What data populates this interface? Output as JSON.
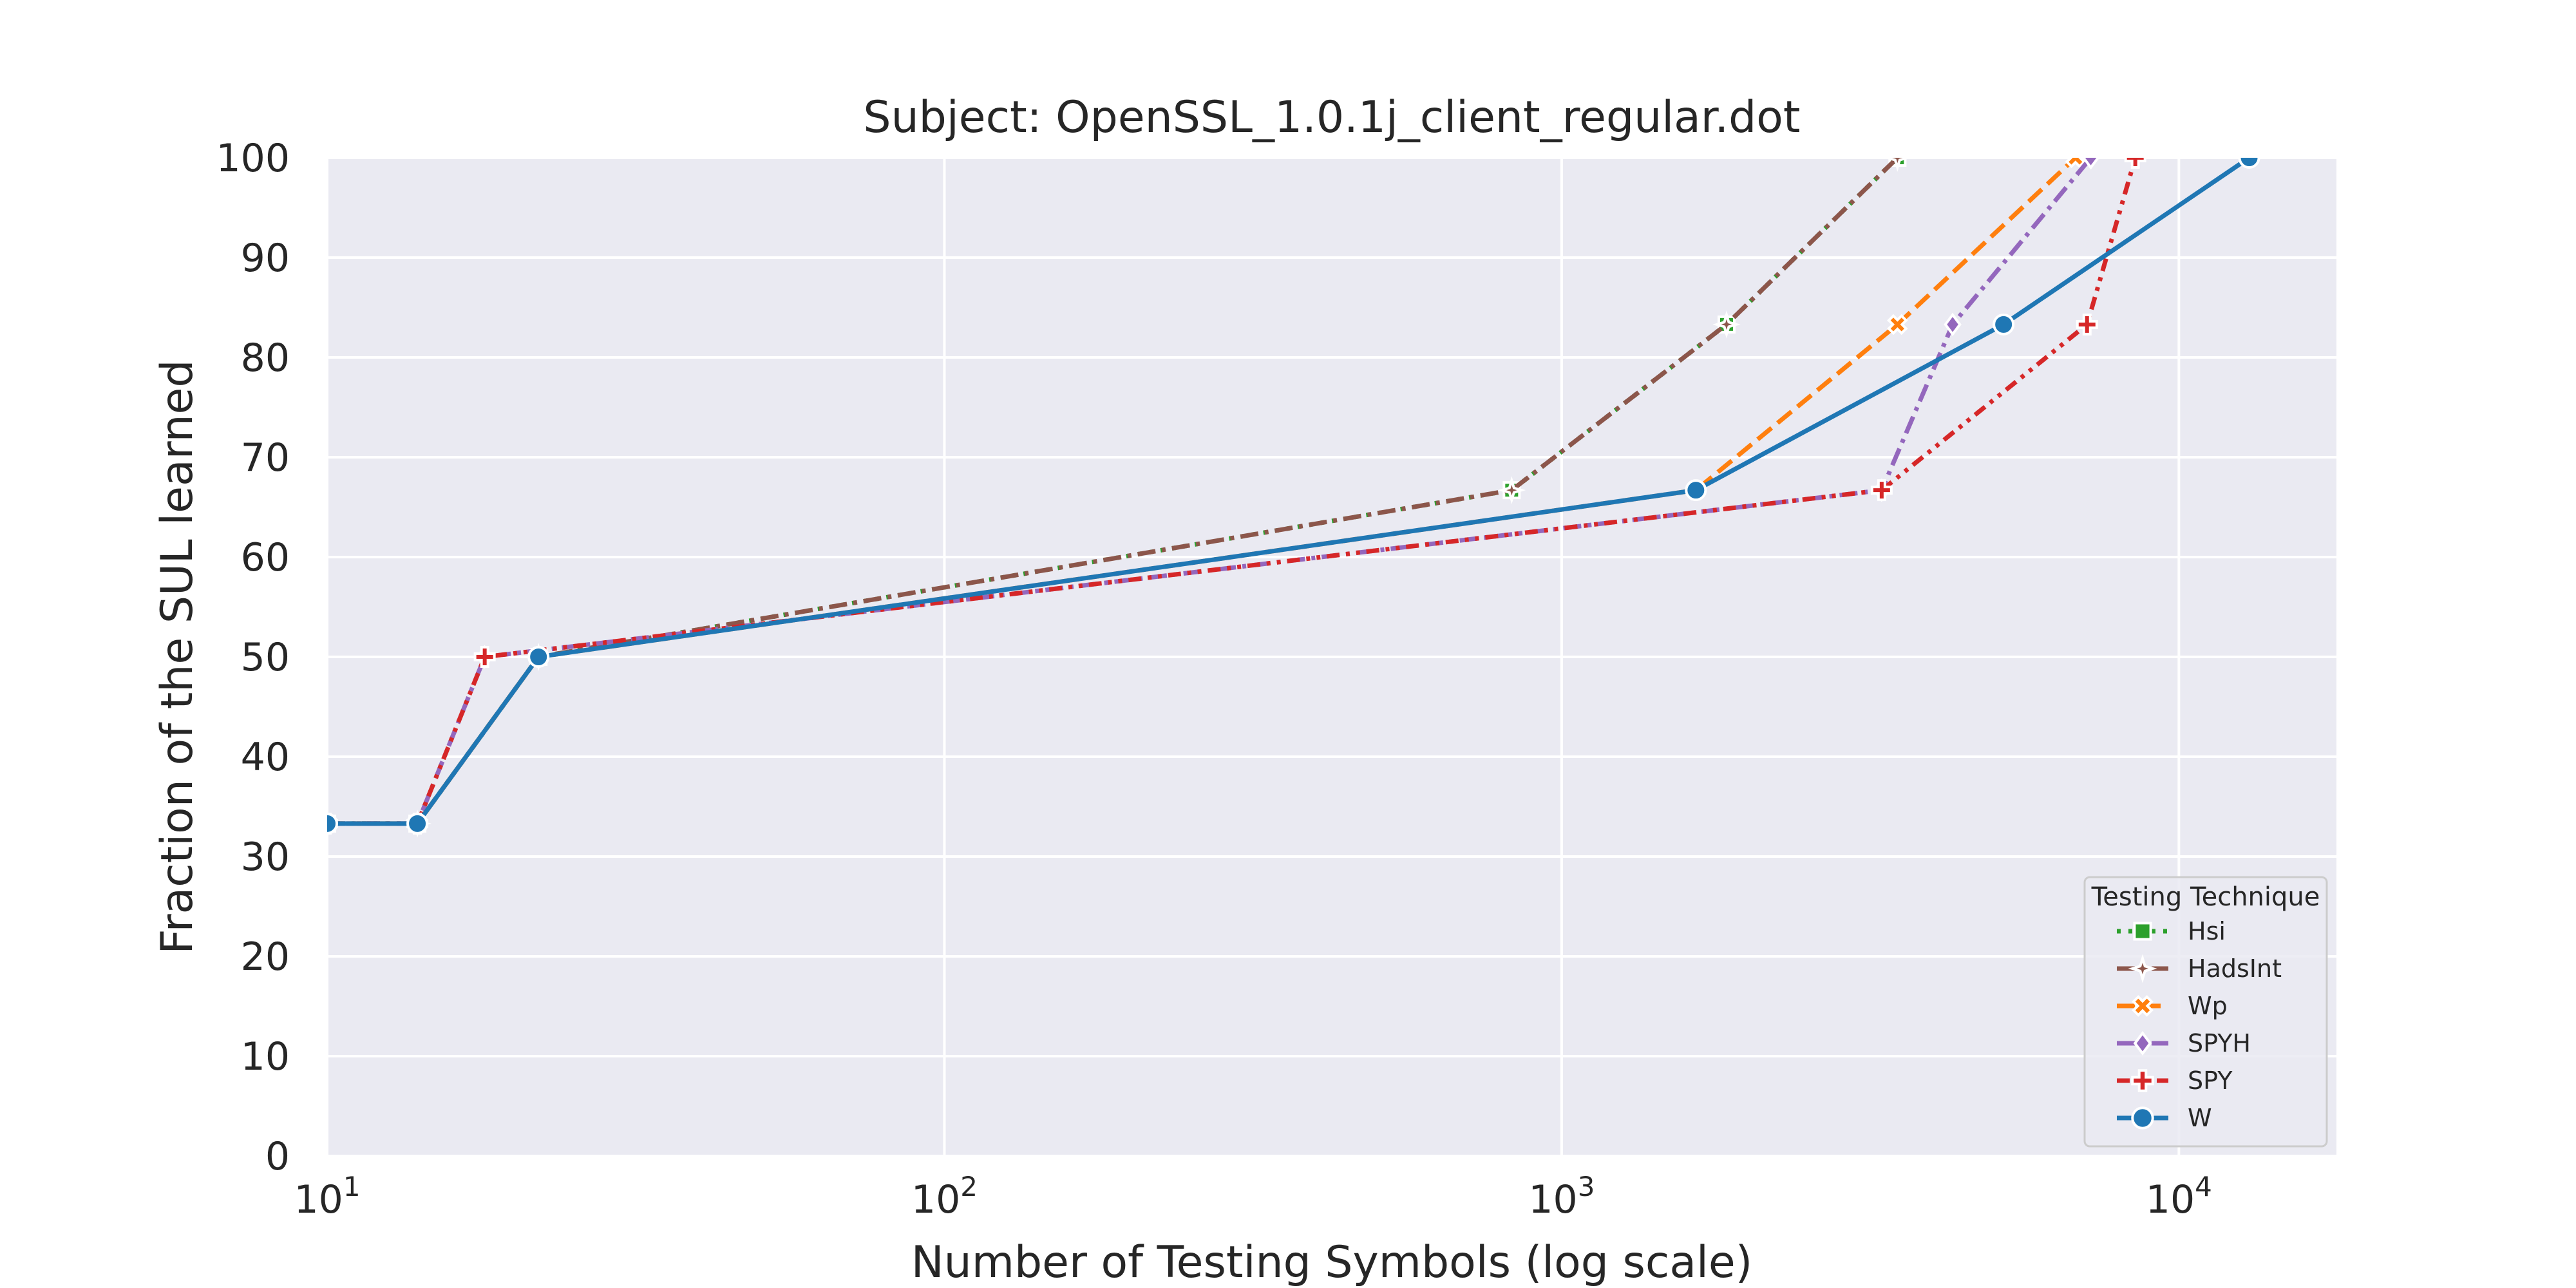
{
  "chart_data": {
    "type": "line",
    "title": "Subject: OpenSSL_1.0.1j_client_regular.dot",
    "xlabel": "Number of Testing Symbols (log scale)",
    "ylabel": "Fraction of the SUL learned",
    "x_scale": "log",
    "xlim": [
      10,
      18000
    ],
    "ylim": [
      0,
      100
    ],
    "x_ticks": [
      {
        "value": 10,
        "base": "10",
        "exp": "1"
      },
      {
        "value": 100,
        "base": "10",
        "exp": "2"
      },
      {
        "value": 1000,
        "base": "10",
        "exp": "3"
      },
      {
        "value": 10000,
        "base": "10",
        "exp": "4"
      }
    ],
    "y_ticks": [
      0,
      10,
      20,
      30,
      40,
      50,
      60,
      70,
      80,
      90,
      100
    ],
    "y_tick_labels": [
      "0",
      "10",
      "20",
      "30",
      "40",
      "50",
      "60",
      "70",
      "80",
      "90",
      "100"
    ],
    "grid": true,
    "background": "#eaeaf2",
    "legend": {
      "title": "Testing Technique",
      "position": "lower-right"
    },
    "series": [
      {
        "name": "Hsi",
        "color": "#2ca02c",
        "dash": "dotted",
        "marker": "square",
        "x": [
          10,
          14,
          22,
          830,
          1850,
          3500
        ],
        "y": [
          33.3,
          33.3,
          50,
          66.7,
          83.3,
          100
        ]
      },
      {
        "name": "HadsInt",
        "color": "#8c564b",
        "dash": "dashdot",
        "marker": "star",
        "x": [
          10,
          14,
          22,
          830,
          1850,
          3500
        ],
        "y": [
          33.3,
          33.3,
          50,
          66.7,
          83.3,
          100
        ]
      },
      {
        "name": "Wp",
        "color": "#ff7f0e",
        "dash": "dashed",
        "marker": "x",
        "x": [
          10,
          14,
          22,
          1650,
          3500,
          6800
        ],
        "y": [
          33.3,
          33.3,
          50,
          66.7,
          83.3,
          100
        ]
      },
      {
        "name": "SPYH",
        "color": "#9467bd",
        "dash": "dashdot",
        "marker": "diamond",
        "x": [
          10,
          14,
          18,
          3300,
          4300,
          7200
        ],
        "y": [
          33.3,
          33.3,
          50,
          66.7,
          83.3,
          100
        ]
      },
      {
        "name": "SPY",
        "color": "#d62728",
        "dash": "dashdotdot",
        "marker": "plus",
        "x": [
          10,
          14,
          18,
          3300,
          7100,
          8500
        ],
        "y": [
          33.3,
          33.3,
          50,
          66.7,
          83.3,
          100
        ]
      },
      {
        "name": "W",
        "color": "#1f77b4",
        "dash": "solid",
        "marker": "circle",
        "x": [
          10,
          14,
          22,
          1650,
          5200,
          13000
        ],
        "y": [
          33.3,
          33.3,
          50,
          66.7,
          83.3,
          100
        ]
      }
    ]
  }
}
